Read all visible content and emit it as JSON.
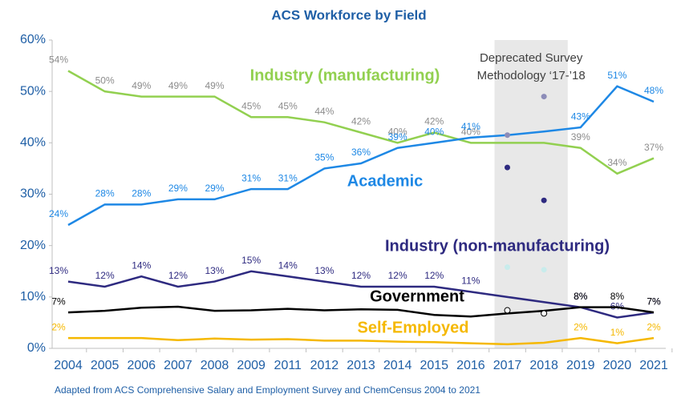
{
  "chart_data": {
    "type": "line",
    "title": "ACS Workforce by Field",
    "footnote": "Adapted from ACS Comprehensive Salary and Employment Survey and ChemCensus 2004 to 2021",
    "annotation": [
      "Deprecated Survey",
      "Methodology ‘17-’18"
    ],
    "categories": [
      "2004",
      "2005",
      "2006",
      "2007",
      "2008",
      "2009",
      "2011",
      "2012",
      "2013",
      "2014",
      "2015",
      "2016",
      "2017",
      "2018",
      "2019",
      "2020",
      "2021"
    ],
    "ylim": [
      0,
      60
    ],
    "yticks": [
      {
        "value": 0,
        "label": "0%"
      },
      {
        "value": 10,
        "label": "10%"
      },
      {
        "value": 20,
        "label": "20%"
      },
      {
        "value": 30,
        "label": "30%"
      },
      {
        "value": 40,
        "label": "40%"
      },
      {
        "value": 50,
        "label": "50%"
      },
      {
        "value": 60,
        "label": "60%"
      }
    ],
    "grid": false,
    "series": [
      {
        "name": "Industry (manufacturing)",
        "color": "#92d050",
        "label_color": "#8c8c8c",
        "values": [
          54,
          50,
          49,
          49,
          49,
          45,
          45,
          44,
          42,
          40,
          42,
          40,
          40,
          40,
          39,
          34,
          37
        ],
        "value_labels": [
          "54%",
          "50%",
          "49%",
          "49%",
          "49%",
          "45%",
          "45%",
          "44%",
          "42%",
          "40%",
          "42%",
          "40%",
          null,
          null,
          "39%",
          "34%",
          "37%"
        ]
      },
      {
        "name": "Academic",
        "color": "#1e88e5",
        "label_color": "#1e88e5",
        "values": [
          24,
          28,
          28,
          29,
          29,
          31,
          31,
          35,
          36,
          39,
          40,
          41,
          41.5,
          42.2,
          43,
          51,
          48
        ],
        "value_labels": [
          "24%",
          "28%",
          "28%",
          "29%",
          "29%",
          "31%",
          "31%",
          "35%",
          "36%",
          "39%",
          "40%",
          "41%",
          null,
          null,
          "43%",
          "51%",
          "48%"
        ]
      },
      {
        "name": "Industry (non-manufacturing)",
        "color": "#2e2a80",
        "label_color": "#2e2a80",
        "values": [
          13,
          12,
          14,
          12,
          13,
          15,
          14,
          13,
          12,
          12,
          12,
          11,
          10,
          9,
          8,
          6,
          7
        ],
        "value_labels": [
          "13%",
          "12%",
          "14%",
          "12%",
          "13%",
          "15%",
          "14%",
          "13%",
          "12%",
          "12%",
          "12%",
          "11%",
          null,
          null,
          "8%",
          "6%",
          "7%"
        ]
      },
      {
        "name": "Government",
        "color": "#000000",
        "label_color": "#000000",
        "values": [
          7,
          7.3,
          7.9,
          8.1,
          7.3,
          7.4,
          7.7,
          7.4,
          7.6,
          7.5,
          6.5,
          6.2,
          6.8,
          7.3,
          8,
          8,
          7
        ],
        "value_labels": [
          "7%",
          null,
          null,
          null,
          null,
          null,
          null,
          null,
          null,
          null,
          null,
          null,
          null,
          null,
          "8%",
          "8%",
          "7%"
        ]
      },
      {
        "name": "Self-Employed",
        "color": "#f5b800",
        "label_color": "#f5b800",
        "values": [
          2,
          2,
          2,
          1.6,
          1.9,
          1.7,
          1.8,
          1.5,
          1.5,
          1.3,
          1.2,
          1,
          0.8,
          1.1,
          2,
          1,
          2
        ],
        "value_labels": [
          "2%",
          null,
          null,
          null,
          null,
          null,
          null,
          null,
          null,
          null,
          null,
          null,
          null,
          null,
          "2%",
          "1%",
          "2%"
        ]
      }
    ],
    "deprecated_points": [
      {
        "color": "#8c8cb8",
        "values": [
          41.5,
          49
        ]
      },
      {
        "color": "#2e2a80",
        "values": [
          35.2,
          28.8
        ]
      },
      {
        "color": "#c8ecec",
        "values": [
          15.8,
          15.3
        ]
      },
      {
        "color": "#ffffff",
        "values": [
          7.4,
          6.8
        ]
      }
    ],
    "deprecated_categories": [
      "2017",
      "2018"
    ]
  }
}
